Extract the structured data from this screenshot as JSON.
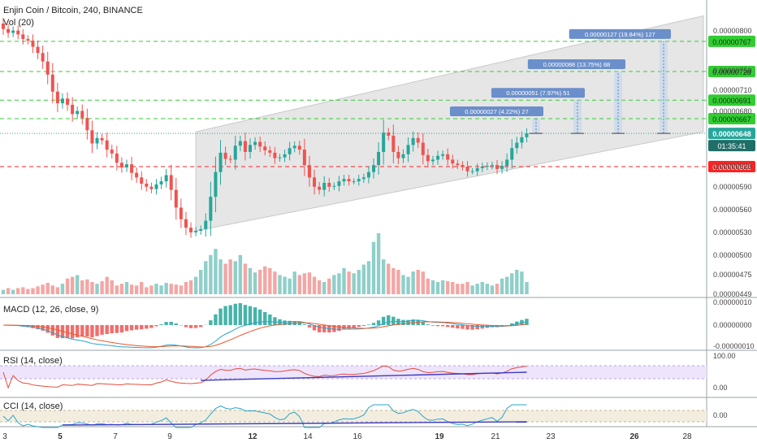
{
  "header": {
    "title": "Enjin Coin / Bitcoin, 240, BINANCE",
    "vol_label": "Vol (20)"
  },
  "colors": {
    "up": "#26a69a",
    "down": "#ef5350",
    "up_vol": "#8fcfc9",
    "down_vol": "#f4a6a4",
    "green_line": "#33cc33",
    "red_line": "#ff2222",
    "channel_fill": "#e6e6e6",
    "rsi_band": "#eee4fb",
    "macd_line": "#2aa5c8",
    "signal_line": "#e85a2c"
  },
  "chart_data": {
    "type": "candlestick",
    "title": "Enjin Coin / Bitcoin, 240, BINANCE",
    "x_axis": {
      "tick_labels": [
        "3",
        "5",
        "7",
        "9",
        "12",
        "14",
        "16",
        "19",
        "21",
        "23",
        "26",
        "28"
      ],
      "bold_ticks": [
        "5",
        "12",
        "19",
        "26"
      ]
    },
    "price_axis": {
      "ylim": [
        4.4e-06,
        8.1e-06
      ],
      "tick_labels": [
        "0.00000800",
        "0.00000750",
        "0.00000710",
        "0.00000680",
        "0.00000650",
        "0.00000620",
        "0.00000590",
        "0.00000560",
        "0.00000530",
        "0.00000500",
        "0.00000475",
        "0.00000449"
      ]
    },
    "current_price": {
      "label": "0.00000648",
      "countdown": "01:35:41"
    },
    "levels": [
      {
        "label": "0.00000767",
        "value": 7.67e-06,
        "color": "green"
      },
      {
        "label": "0.00000728",
        "value": 7.28e-06,
        "color": "green"
      },
      {
        "label": "0.00000691",
        "value": 6.91e-06,
        "color": "green"
      },
      {
        "label": "0.00000667",
        "value": 6.67e-06,
        "color": "green"
      },
      {
        "label": "0.00000605",
        "value": 6.05e-06,
        "color": "red"
      }
    ],
    "targets": [
      {
        "label": "0.00000027 (4.22%) 27",
        "value": 6.67e-06
      },
      {
        "label": "0.00000051 (7.97%) 51",
        "value": 6.91e-06
      },
      {
        "label": "0.00000088 (13.75%) 88",
        "value": 7.28e-06
      },
      {
        "label": "0.00000127 (19.84%) 127",
        "value": 7.67e-06
      }
    ],
    "channel": {
      "lower": [
        5.22e-06,
        6.5e-06
      ],
      "upper": [
        6.5e-06,
        8e-06
      ]
    },
    "close": [
      7.83e-06,
      7.78e-06,
      7.81e-06,
      7.76e-06,
      7.7e-06,
      7.68e-06,
      7.6e-06,
      7.52e-06,
      7.41e-06,
      7.24e-06,
      7.02e-06,
      6.87e-06,
      6.93e-06,
      6.85e-06,
      6.73e-06,
      6.77e-06,
      6.68e-06,
      6.52e-06,
      6.35e-06,
      6.42e-06,
      6.39e-06,
      6.27e-06,
      6.22e-06,
      6.1e-06,
      6.04e-06,
      6.08e-06,
      5.97e-06,
      5.91e-06,
      5.83e-06,
      5.79e-06,
      5.76e-06,
      5.82e-06,
      5.86e-06,
      5.94e-06,
      5.75e-06,
      5.52e-06,
      5.37e-06,
      5.26e-06,
      5.2e-06,
      5.22e-06,
      5.24e-06,
      5.35e-06,
      5.66e-06,
      5.98e-06,
      6.23e-06,
      6.15e-06,
      6.14e-06,
      6.32e-06,
      6.38e-06,
      6.24e-06,
      6.33e-06,
      6.37e-06,
      6.31e-06,
      6.26e-06,
      6.23e-06,
      6.16e-06,
      6.17e-06,
      6.21e-06,
      6.29e-06,
      6.32e-06,
      6.27e-06,
      6.07e-06,
      5.91e-06,
      5.79e-06,
      5.75e-06,
      5.84e-06,
      5.79e-06,
      5.8e-06,
      5.86e-06,
      5.89e-06,
      5.86e-06,
      5.86e-06,
      5.89e-06,
      5.91e-06,
      5.98e-06,
      6.07e-06,
      6.24e-06,
      6.49e-06,
      6.45e-06,
      6.24e-06,
      6.16e-06,
      6.21e-06,
      6.33e-06,
      6.42e-06,
      6.36e-06,
      6.2e-06,
      6.12e-06,
      6.14e-06,
      6.19e-06,
      6.21e-06,
      6.14e-06,
      6.09e-06,
      6.07e-06,
      6.05e-06,
      5.99e-06,
      5.99e-06,
      6.03e-06,
      6.05e-06,
      6.06e-06,
      6.07e-06,
      6.02e-06,
      6.06e-06,
      6.14e-06,
      6.29e-06,
      6.36e-06,
      6.43e-06,
      6.48e-06
    ],
    "volume": [
      5,
      7,
      5,
      7,
      8,
      6,
      7,
      9,
      11,
      13,
      10,
      8,
      12,
      18,
      20,
      22,
      16,
      17,
      14,
      12,
      15,
      20,
      16,
      10,
      12,
      14,
      11,
      10,
      14,
      8,
      10,
      12,
      10,
      13,
      12,
      11,
      10,
      14,
      16,
      20,
      28,
      38,
      45,
      52,
      40,
      35,
      40,
      38,
      45,
      35,
      30,
      25,
      28,
      32,
      30,
      26,
      22,
      20,
      18,
      26,
      22,
      24,
      25,
      20,
      16,
      14,
      18,
      22,
      24,
      30,
      26,
      24,
      28,
      34,
      38,
      60,
      70,
      40,
      35,
      30,
      28,
      22,
      20,
      26,
      28,
      26,
      18,
      16,
      14,
      16,
      15,
      14,
      12,
      12,
      14,
      10,
      12,
      14,
      12,
      10,
      12,
      18,
      20,
      24,
      28,
      26,
      14
    ],
    "vol_axis_labels": [
      "0.00000475",
      "0.00000449"
    ],
    "indicators": [
      {
        "name": "MACD (12, 26, close, 9)",
        "axis_labels": [
          "0.00000010",
          "0.00000000",
          "-0.00000010"
        ]
      },
      {
        "name": "RSI (14, close)",
        "axis_labels": [
          "100.00",
          "0.00"
        ]
      },
      {
        "name": "CCI (14, close)",
        "axis_labels": [
          "0.00"
        ]
      }
    ]
  }
}
